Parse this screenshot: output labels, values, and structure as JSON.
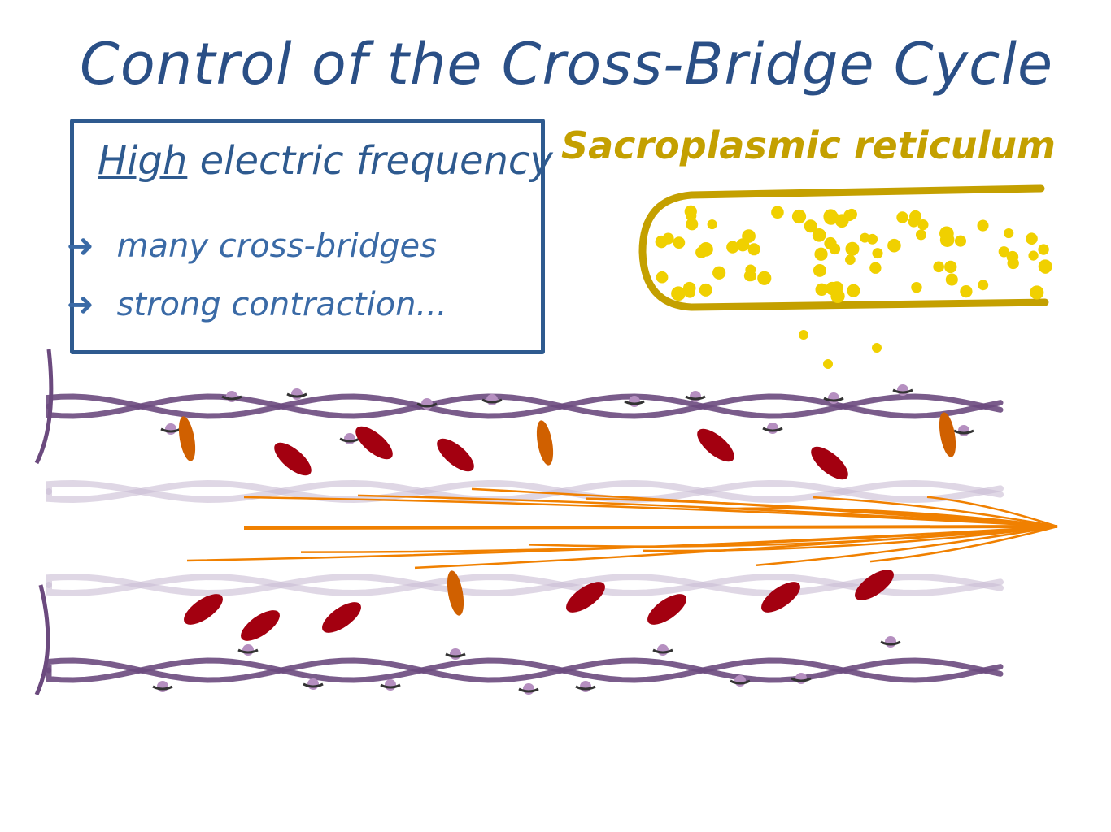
{
  "title": "Control of the Cross-Bridge Cycle",
  "box": {
    "heading_emphasis": "High",
    "heading_rest": "electric frequency",
    "points": [
      {
        "icon": "arrow-icon",
        "text": "many cross-bridges"
      },
      {
        "icon": "arrow-icon",
        "text": "strong contraction..."
      }
    ]
  },
  "sr_label": "Sacroplasmic reticulum",
  "colors": {
    "title": "#2a4f86",
    "box": "#2e5a8f",
    "sr": "#c4a000",
    "calcium": "#f0d000",
    "actin": "#6b4a7e",
    "myosin_head_active": "#a30010",
    "myosin_head_inactive": "#d06000",
    "myosin_filament": "#f08000"
  }
}
